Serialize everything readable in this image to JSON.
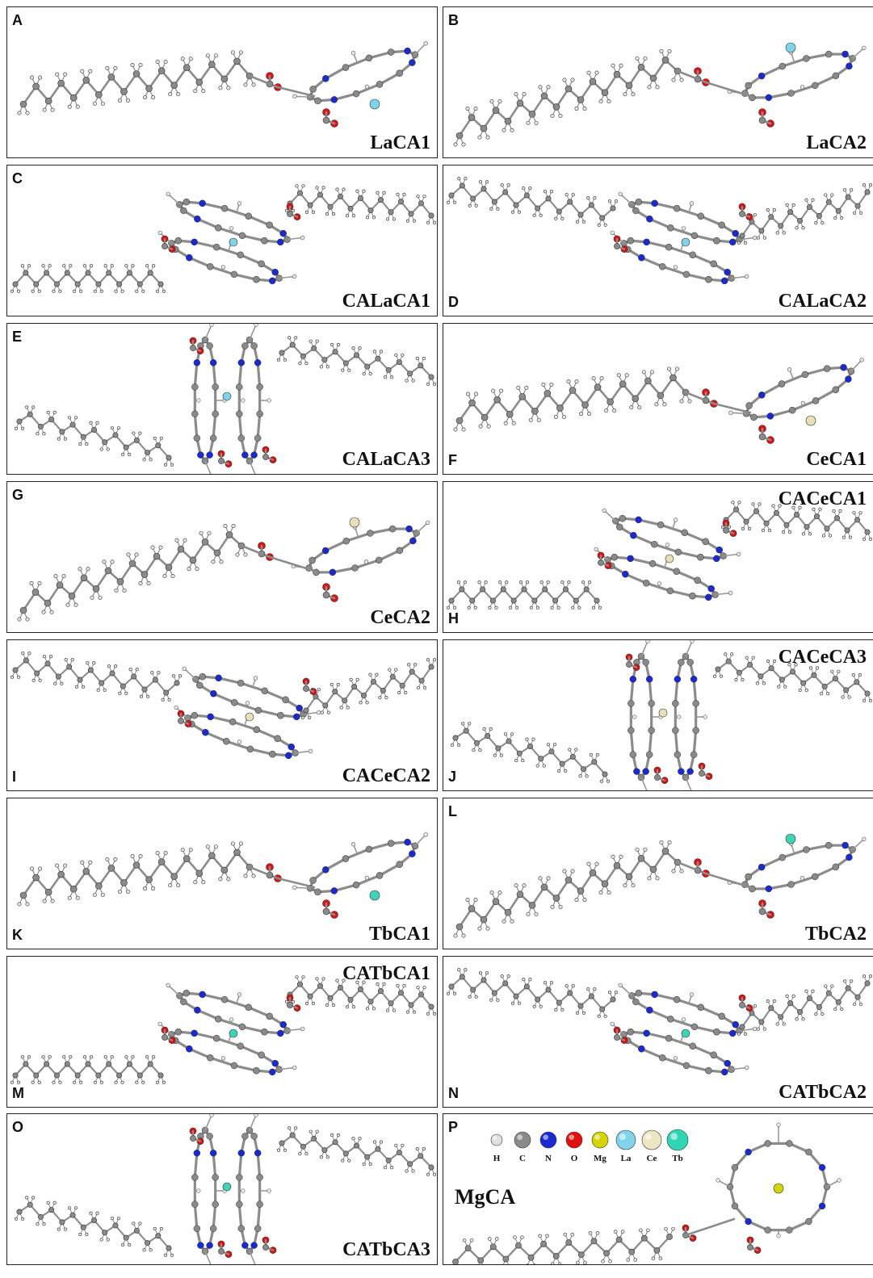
{
  "panels": [
    {
      "letter": "A",
      "title": "LaCA1",
      "metal": "#7fd4ea",
      "type": "mono",
      "flip": false
    },
    {
      "letter": "B",
      "title": "LaCA2",
      "metal": "#7fd4ea",
      "type": "mono",
      "flip": true
    },
    {
      "letter": "C",
      "title": "CALaCA1",
      "metal": "#7fd4ea",
      "type": "sandwich",
      "variant": 1
    },
    {
      "letter": "D",
      "title": "CALaCA2",
      "metal": "#7fd4ea",
      "type": "sandwich",
      "variant": 2
    },
    {
      "letter": "E",
      "title": "CALaCA3",
      "metal": "#7fd4ea",
      "type": "sandwich",
      "variant": 3
    },
    {
      "letter": "F",
      "title": "CeCA1",
      "metal": "#e8e0b8",
      "type": "mono",
      "flip": false
    },
    {
      "letter": "G",
      "title": "CeCA2",
      "metal": "#e8e0b8",
      "type": "mono",
      "flip": true
    },
    {
      "letter": "H",
      "title": "CACeCA1",
      "metal": "#e8e0b8",
      "type": "sandwich",
      "variant": 1
    },
    {
      "letter": "I",
      "title": "CACeCA2",
      "metal": "#e8e0b8",
      "type": "sandwich",
      "variant": 2
    },
    {
      "letter": "J",
      "title": "CACeCA3",
      "metal": "#e8e0b8",
      "type": "sandwich",
      "variant": 3
    },
    {
      "letter": "K",
      "title": "TbCA1",
      "metal": "#3fd3b8",
      "type": "mono",
      "flip": false
    },
    {
      "letter": "L",
      "title": "TbCA2",
      "metal": "#3fd3b8",
      "type": "mono",
      "flip": true
    },
    {
      "letter": "M",
      "title": "CATbCA1",
      "metal": "#3fd3b8",
      "type": "sandwich",
      "variant": 1
    },
    {
      "letter": "N",
      "title": "CATbCA2",
      "metal": "#3fd3b8",
      "type": "sandwich",
      "variant": 2
    },
    {
      "letter": "O",
      "title": "CATbCA3",
      "metal": "#3fd3b8",
      "type": "sandwich",
      "variant": 3
    },
    {
      "letter": "P",
      "title": "MgCA",
      "metal": "#d4d400",
      "type": "mg"
    }
  ],
  "legend": [
    {
      "symbol": "H",
      "color": "#e0e0e0",
      "size": 7
    },
    {
      "symbol": "C",
      "color": "#8a8a8a",
      "size": 10
    },
    {
      "symbol": "N",
      "color": "#1a2ad0",
      "size": 10
    },
    {
      "symbol": "O",
      "color": "#e01010",
      "size": 10
    },
    {
      "symbol": "Mg",
      "color": "#d4d400",
      "size": 10
    },
    {
      "symbol": "La",
      "color": "#7fd4ea",
      "size": 12
    },
    {
      "symbol": "Ce",
      "color": "#ece6c2",
      "size": 12
    },
    {
      "symbol": "Tb",
      "color": "#30d6b4",
      "size": 13
    }
  ]
}
